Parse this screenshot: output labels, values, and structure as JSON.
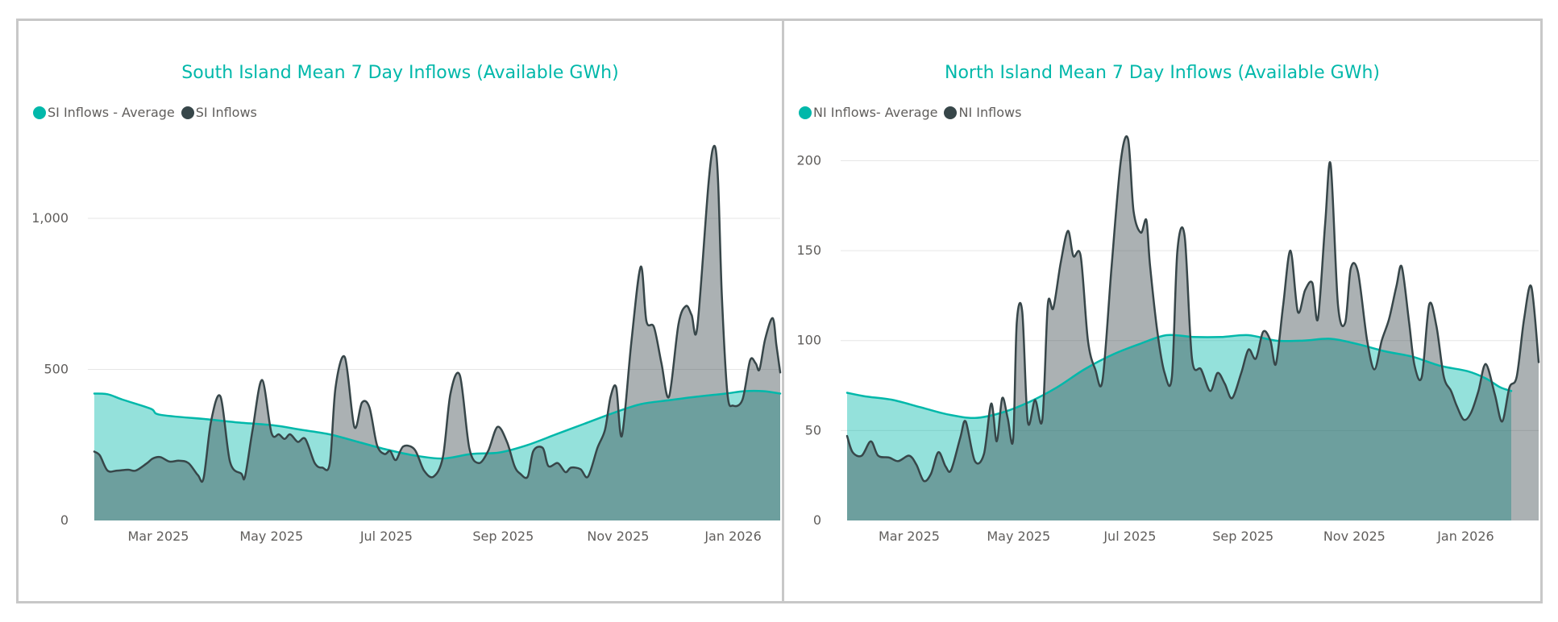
{
  "colors": {
    "average": "#01b8aa",
    "inflows": "#374649",
    "title": "#01b8aa"
  },
  "chart_data": [
    {
      "type": "area",
      "title": "South Island Mean 7 Day Inflows (Available GWh)",
      "legend": [
        "SI Inflows - Average",
        "SI Inflows"
      ],
      "xlabel": "",
      "ylabel": "",
      "x_start": "2025-02-01",
      "x_end": "2026-01-31",
      "x_ticks": [
        {
          "label": "Mar 2025",
          "day": 34
        },
        {
          "label": "May 2025",
          "day": 94
        },
        {
          "label": "Jul 2025",
          "day": 155
        },
        {
          "label": "Sep 2025",
          "day": 217
        },
        {
          "label": "Nov 2025",
          "day": 278
        },
        {
          "label": "Jan 2026",
          "day": 339
        }
      ],
      "y_ticks": [
        {
          "label": "0",
          "value": 0
        },
        {
          "label": "500",
          "value": 500
        },
        {
          "label": "1,000",
          "value": 1000
        }
      ],
      "ylim": [
        0,
        1280
      ],
      "series": [
        {
          "name": "SI Inflows - Average",
          "points": [
            [
              0,
              420
            ],
            [
              7,
              418
            ],
            [
              15,
              400
            ],
            [
              30,
              370
            ],
            [
              35,
              350
            ],
            [
              60,
              335
            ],
            [
              75,
              325
            ],
            [
              95,
              315
            ],
            [
              110,
              300
            ],
            [
              125,
              285
            ],
            [
              140,
              260
            ],
            [
              155,
              235
            ],
            [
              170,
              215
            ],
            [
              185,
              205
            ],
            [
              200,
              220
            ],
            [
              215,
              225
            ],
            [
              230,
              250
            ],
            [
              245,
              285
            ],
            [
              260,
              320
            ],
            [
              275,
              355
            ],
            [
              290,
              385
            ],
            [
              305,
              398
            ],
            [
              320,
              410
            ],
            [
              335,
              420
            ],
            [
              345,
              428
            ],
            [
              355,
              428
            ],
            [
              364,
              420
            ]
          ]
        },
        {
          "name": "SI Inflows",
          "points": [
            [
              0,
              228
            ],
            [
              3,
              215
            ],
            [
              7,
              165
            ],
            [
              12,
              165
            ],
            [
              18,
              168
            ],
            [
              22,
              165
            ],
            [
              28,
              190
            ],
            [
              31,
              205
            ],
            [
              35,
              210
            ],
            [
              40,
              195
            ],
            [
              45,
              198
            ],
            [
              50,
              190
            ],
            [
              55,
              150
            ],
            [
              58,
              140
            ],
            [
              62,
              330
            ],
            [
              67,
              410
            ],
            [
              72,
              195
            ],
            [
              78,
              155
            ],
            [
              80,
              145
            ],
            [
              84,
              300
            ],
            [
              89,
              465
            ],
            [
              94,
              290
            ],
            [
              98,
              285
            ],
            [
              101,
              270
            ],
            [
              104,
              285
            ],
            [
              108,
              260
            ],
            [
              112,
              270
            ],
            [
              117,
              190
            ],
            [
              121,
              175
            ],
            [
              125,
              190
            ],
            [
              128,
              440
            ],
            [
              133,
              540
            ],
            [
              138,
              310
            ],
            [
              142,
              390
            ],
            [
              146,
              375
            ],
            [
              150,
              250
            ],
            [
              154,
              220
            ],
            [
              157,
              230
            ],
            [
              160,
              200
            ],
            [
              164,
              245
            ],
            [
              170,
              235
            ],
            [
              175,
              165
            ],
            [
              180,
              145
            ],
            [
              185,
              210
            ],
            [
              189,
              420
            ],
            [
              194,
              480
            ],
            [
              199,
              240
            ],
            [
              204,
              190
            ],
            [
              209,
              230
            ],
            [
              214,
              310
            ],
            [
              219,
              260
            ],
            [
              223,
              180
            ],
            [
              226,
              155
            ],
            [
              230,
              145
            ],
            [
              233,
              230
            ],
            [
              238,
              240
            ],
            [
              241,
              180
            ],
            [
              246,
              190
            ],
            [
              250,
              160
            ],
            [
              253,
              175
            ],
            [
              258,
              170
            ],
            [
              262,
              145
            ],
            [
              267,
              240
            ],
            [
              271,
              300
            ],
            [
              274,
              410
            ],
            [
              277,
              440
            ],
            [
              280,
              280
            ],
            [
              285,
              590
            ],
            [
              290,
              840
            ],
            [
              293,
              660
            ],
            [
              297,
              640
            ],
            [
              301,
              520
            ],
            [
              305,
              410
            ],
            [
              310,
              650
            ],
            [
              314,
              710
            ],
            [
              317,
              680
            ],
            [
              320,
              640
            ],
            [
              326,
              1120
            ],
            [
              329,
              1240
            ],
            [
              331,
              1130
            ],
            [
              333,
              750
            ],
            [
              336,
              420
            ],
            [
              339,
              380
            ],
            [
              344,
              400
            ],
            [
              348,
              530
            ],
            [
              351,
              520
            ],
            [
              353,
              500
            ],
            [
              356,
              600
            ],
            [
              360,
              670
            ],
            [
              362,
              580
            ],
            [
              364,
              490
            ]
          ]
        }
      ]
    },
    {
      "type": "area",
      "title": "North Island Mean 7 Day Inflows (Available GWh)",
      "legend": [
        "NI Inflows- Average",
        "NI Inflows"
      ],
      "xlabel": "",
      "ylabel": "",
      "x_start": "2025-02-01",
      "x_end": "2026-01-31",
      "x_ticks": [
        {
          "label": "Mar 2025",
          "day": 34
        },
        {
          "label": "May 2025",
          "day": 94
        },
        {
          "label": "Jul 2025",
          "day": 155
        },
        {
          "label": "Sep 2025",
          "day": 217
        },
        {
          "label": "Nov 2025",
          "day": 278
        },
        {
          "label": "Jan 2026",
          "day": 339
        }
      ],
      "y_ticks": [
        {
          "label": "0",
          "value": 0
        },
        {
          "label": "50",
          "value": 50
        },
        {
          "label": "100",
          "value": 100
        },
        {
          "label": "150",
          "value": 150
        },
        {
          "label": "200",
          "value": 200
        }
      ],
      "ylim": [
        0,
        215
      ],
      "series": [
        {
          "name": "NI Inflows- Average",
          "points": [
            [
              0,
              71
            ],
            [
              10,
              69
            ],
            [
              25,
              67
            ],
            [
              40,
              63
            ],
            [
              55,
              59
            ],
            [
              70,
              57
            ],
            [
              85,
              60
            ],
            [
              100,
              66
            ],
            [
              115,
              74
            ],
            [
              130,
              84
            ],
            [
              145,
              92
            ],
            [
              160,
              98
            ],
            [
              175,
              103
            ],
            [
              190,
              102
            ],
            [
              205,
              102
            ],
            [
              220,
              103
            ],
            [
              235,
              100
            ],
            [
              250,
              100
            ],
            [
              265,
              101
            ],
            [
              280,
              98
            ],
            [
              295,
              94
            ],
            [
              310,
              91
            ],
            [
              325,
              86
            ],
            [
              340,
              83
            ],
            [
              350,
              79
            ],
            [
              358,
              74
            ],
            [
              364,
              72
            ]
          ]
        },
        {
          "name": "NI Inflows",
          "points": [
            [
              0,
              47
            ],
            [
              3,
              38
            ],
            [
              8,
              36
            ],
            [
              13,
              44
            ],
            [
              17,
              36
            ],
            [
              23,
              35
            ],
            [
              28,
              33
            ],
            [
              34,
              36
            ],
            [
              38,
              31
            ],
            [
              42,
              22
            ],
            [
              46,
              26
            ],
            [
              50,
              38
            ],
            [
              54,
              30
            ],
            [
              57,
              28
            ],
            [
              62,
              46
            ],
            [
              65,
              55
            ],
            [
              70,
              33
            ],
            [
              75,
              37
            ],
            [
              79,
              65
            ],
            [
              82,
              44
            ],
            [
              85,
              68
            ],
            [
              88,
              57
            ],
            [
              91,
              45
            ],
            [
              93,
              110
            ],
            [
              96,
              116
            ],
            [
              99,
              55
            ],
            [
              103,
              67
            ],
            [
              107,
              56
            ],
            [
              110,
              120
            ],
            [
              113,
              118
            ],
            [
              117,
              143
            ],
            [
              121,
              161
            ],
            [
              124,
              147
            ],
            [
              128,
              147
            ],
            [
              132,
              100
            ],
            [
              136,
              84
            ],
            [
              140,
              78
            ],
            [
              145,
              142
            ],
            [
              150,
              200
            ],
            [
              154,
              212
            ],
            [
              157,
              172
            ],
            [
              161,
              160
            ],
            [
              164,
              167
            ],
            [
              166,
              142
            ],
            [
              170,
              105
            ],
            [
              174,
              82
            ],
            [
              178,
              80
            ],
            [
              181,
              150
            ],
            [
              185,
              158
            ],
            [
              189,
              90
            ],
            [
              194,
              84
            ],
            [
              199,
              72
            ],
            [
              203,
              82
            ],
            [
              207,
              76
            ],
            [
              211,
              68
            ],
            [
              216,
              82
            ],
            [
              220,
              95
            ],
            [
              224,
              90
            ],
            [
              228,
              105
            ],
            [
              232,
              100
            ],
            [
              235,
              87
            ],
            [
              239,
              120
            ],
            [
              243,
              150
            ],
            [
              247,
              116
            ],
            [
              251,
              128
            ],
            [
              255,
              132
            ],
            [
              258,
              112
            ],
            [
              262,
              165
            ],
            [
              265,
              198
            ],
            [
              269,
              120
            ],
            [
              273,
              110
            ],
            [
              276,
              140
            ],
            [
              280,
              138
            ],
            [
              285,
              100
            ],
            [
              289,
              84
            ],
            [
              293,
              100
            ],
            [
              297,
              112
            ],
            [
              301,
              130
            ],
            [
              304,
              141
            ],
            [
              308,
              110
            ],
            [
              311,
              86
            ],
            [
              315,
              80
            ],
            [
              319,
              120
            ],
            [
              323,
              108
            ],
            [
              327,
              80
            ],
            [
              331,
              72
            ],
            [
              334,
              64
            ],
            [
              338,
              56
            ],
            [
              342,
              60
            ],
            [
              346,
              72
            ],
            [
              350,
              87
            ],
            [
              355,
              70
            ],
            [
              359,
              55
            ],
            [
              363,
              74
            ],
            [
              367,
              80
            ],
            [
              371,
              112
            ],
            [
              375,
              130
            ],
            [
              379,
              88
            ]
          ]
        }
      ]
    }
  ]
}
